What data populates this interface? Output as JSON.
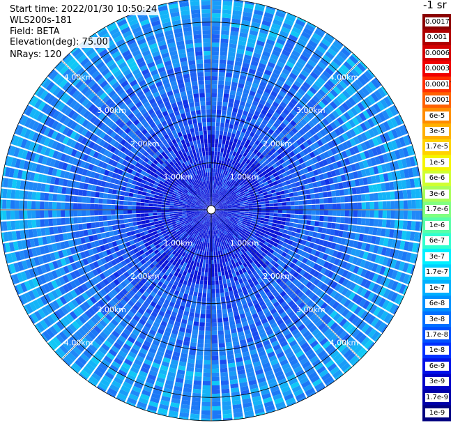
{
  "header": {
    "start_time": "Start time: 2022/01/30 10:50:24",
    "instrument": "WLS200s-181",
    "field": "Field: BETA",
    "elevation": "Elevation(deg): 75.00",
    "nrays": "NRays: 120"
  },
  "colorbar": {
    "unit": "-1 sr",
    "labels": [
      "0.0017",
      "0.001",
      "0.0006",
      "0.0003",
      "0.00017",
      "0.0001",
      "6e-5",
      "3e-5",
      "1.7e-5",
      "1e-5",
      "6e-6",
      "3e-6",
      "1.7e-6",
      "1e-6",
      "6e-7",
      "3e-7",
      "1.7e-7",
      "1e-7",
      "6e-8",
      "3e-8",
      "1.7e-8",
      "1e-8",
      "6e-9",
      "3e-9",
      "1.7e-9",
      "1e-9"
    ],
    "colors": [
      "#8b0000",
      "#b00000",
      "#d40000",
      "#f00000",
      "#ff3000",
      "#ff6000",
      "#ff8c00",
      "#ffb000",
      "#ffd200",
      "#f5f500",
      "#d0ff30",
      "#a8ff58",
      "#80ff80",
      "#58ffa8",
      "#30ffd0",
      "#00f0ff",
      "#00d0ff",
      "#00b0ff",
      "#0090ff",
      "#0070ff",
      "#0050ff",
      "#0030ff",
      "#0010e8",
      "#0000c8",
      "#0000a8",
      "#000080"
    ]
  },
  "chart_data": {
    "type": "heatmap",
    "projection": "polar-ppi",
    "field": "BETA",
    "units": "sr-1",
    "n_rays": 120,
    "elevation_deg": 75.0,
    "range_km": [
      0,
      4.5
    ],
    "range_rings_km": [
      1,
      2,
      3,
      4
    ],
    "ring_labels": [
      "1.00km",
      "2.00km",
      "3.00km",
      "4.00km"
    ],
    "color_scale": "log",
    "value_range": [
      1e-09,
      0.0017
    ],
    "typical_value_near": "1.7e-8 to 1e-8",
    "typical_value_far": "1e-8 to 1e-7"
  }
}
